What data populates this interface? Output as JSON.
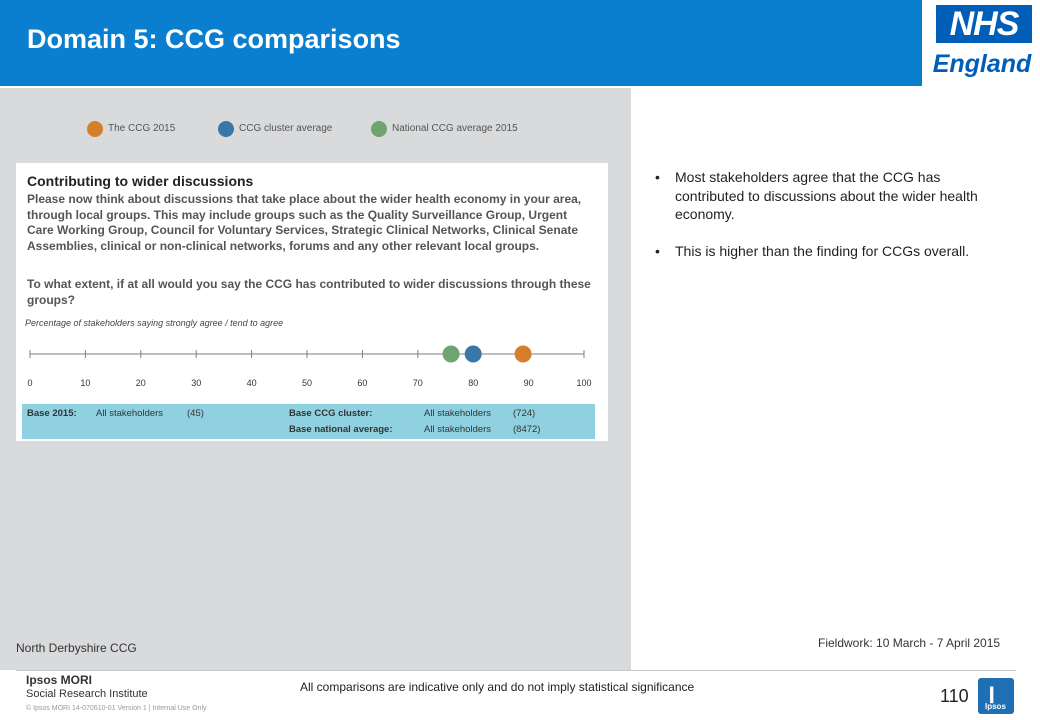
{
  "header": {
    "title": "Domain 5: CCG comparisons",
    "brand_color": "#0a7fd0",
    "logo_badge": "NHS",
    "logo_word": "England",
    "logo_color": "#005eb8"
  },
  "legend": [
    {
      "label": "The CCG 2015",
      "color": "#d57f2d"
    },
    {
      "label": "CCG cluster average",
      "color": "#3a76a6"
    },
    {
      "label": "National CCG average 2015",
      "color": "#6fa36f"
    }
  ],
  "card": {
    "title": "Contributing to wider discussions",
    "description": "Please now think about discussions that take place about the wider health economy in your area, through local groups. This may include groups  such as the Quality Surveillance Group, Urgent Care Working Group, Council for Voluntary Services, Strategic Clinical Networks, Clinical Senate Assemblies, clinical or non-clinical networks, forums and any other relevant local groups.",
    "question": "To what extent, if at all would you say the CCG has contributed to wider discussions through these groups?",
    "axis_caption": "Percentage of stakeholders saying strongly agree / tend to agree"
  },
  "chart_data": {
    "type": "scatter",
    "title": "Contributing to wider discussions",
    "xlabel": "Percentage of stakeholders saying strongly agree / tend to agree",
    "xlim": [
      0,
      100
    ],
    "ticks": [
      0,
      10,
      20,
      30,
      40,
      50,
      60,
      70,
      80,
      90,
      100
    ],
    "tick_labels": [
      "0",
      "10",
      "20",
      "30",
      "40",
      "50",
      "60",
      "70",
      "80",
      "90",
      "100"
    ],
    "series": [
      {
        "name": "The CCG 2015",
        "value": 89,
        "color": "#d57f2d"
      },
      {
        "name": "CCG cluster average",
        "value": 80,
        "color": "#3a76a6"
      },
      {
        "name": "National CCG average 2015",
        "value": 76,
        "color": "#6fa36f"
      }
    ],
    "grid": false
  },
  "base": {
    "ccg_label": "Base 2015:",
    "ccg_group": "All stakeholders",
    "ccg_n": "(45)",
    "cluster_label": "Base CCG cluster:",
    "cluster_group": "All stakeholders",
    "cluster_n": "(724)",
    "national_label": "Base national average:",
    "national_group": "All stakeholders",
    "national_n": "(8472)",
    "bg_color": "#8fd1e0"
  },
  "bullets": [
    "Most stakeholders agree that the CCG has contributed to discussions about the wider health economy.",
    "This is higher than the finding for CCGs overall."
  ],
  "bullet_marker": "•",
  "org_name": "North Derbyshire CCG",
  "fieldwork": "Fieldwork: 10 March - 7 April 2015",
  "footer": {
    "brand_line1": "Ipsos MORI",
    "brand_line2": "Social Research Institute",
    "copyright": "© Ipsos MORI    14-070610-01  Version 1 | Internal Use Only",
    "disclaimer": "All comparisons are indicative only and do not imply statistical significance",
    "page_number": "110",
    "icon_label": "Ipsos"
  }
}
